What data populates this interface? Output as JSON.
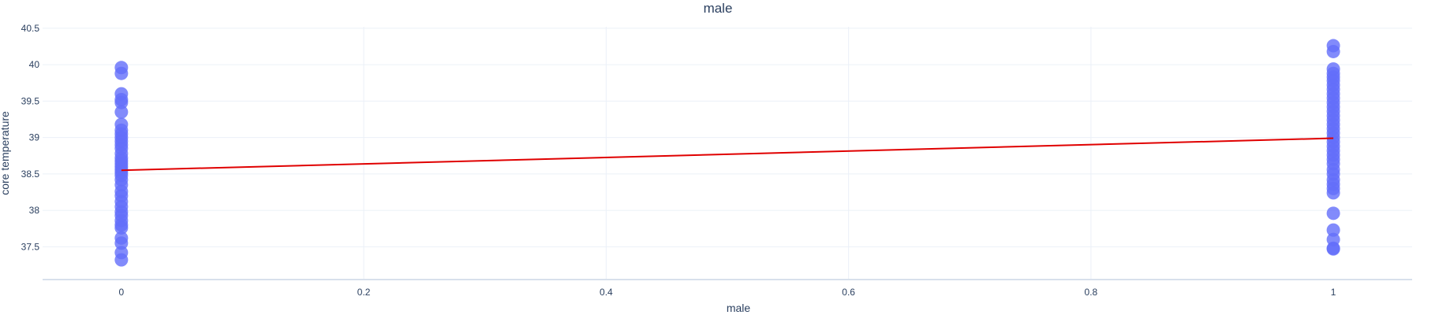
{
  "chart_data": {
    "type": "scatter",
    "title": "male",
    "xlabel": "male",
    "ylabel": "core temperature",
    "xlim": [
      -0.065,
      1.065
    ],
    "ylim": [
      37.05,
      40.52
    ],
    "x_ticks": [
      0,
      0.2,
      0.4,
      0.6,
      0.8,
      1
    ],
    "x_tick_labels": [
      "0",
      "0.2",
      "0.4",
      "0.6",
      "0.8",
      "1"
    ],
    "y_ticks": [
      37.5,
      38,
      38.5,
      39,
      39.5,
      40,
      40.5
    ],
    "y_tick_labels": [
      "37.5",
      "38",
      "38.5",
      "39",
      "39.5",
      "40",
      "40.5"
    ],
    "grid": true,
    "colors": {
      "points": "#636efa",
      "trend": "#e00000",
      "grid": "#ebf0f8",
      "axis": "#d8e0ec",
      "text": "#2a3f5f"
    },
    "series": [
      {
        "x_value": 0,
        "y": [
          39.96,
          39.88,
          39.6,
          39.52,
          39.48,
          39.35,
          39.18,
          39.1,
          39.05,
          39.0,
          38.95,
          38.9,
          38.85,
          38.78,
          38.72,
          38.68,
          38.64,
          38.6,
          38.56,
          38.52,
          38.48,
          38.42,
          38.35,
          38.26,
          38.2,
          38.12,
          38.05,
          37.98,
          37.93,
          37.86,
          37.8,
          37.76,
          37.62,
          37.55,
          37.42,
          37.32
        ]
      },
      {
        "x_value": 1,
        "y": [
          40.26,
          40.18,
          39.94,
          39.88,
          39.83,
          39.78,
          39.72,
          39.66,
          39.6,
          39.54,
          39.48,
          39.42,
          39.36,
          39.3,
          39.24,
          39.18,
          39.12,
          39.06,
          39.0,
          38.94,
          38.88,
          38.82,
          38.76,
          38.7,
          38.64,
          38.56,
          38.5,
          38.42,
          38.36,
          38.3,
          38.24,
          37.96,
          37.73,
          37.6,
          37.48,
          37.47
        ]
      }
    ],
    "trend_line": {
      "x": [
        0,
        1
      ],
      "y": [
        38.55,
        38.99
      ]
    }
  }
}
